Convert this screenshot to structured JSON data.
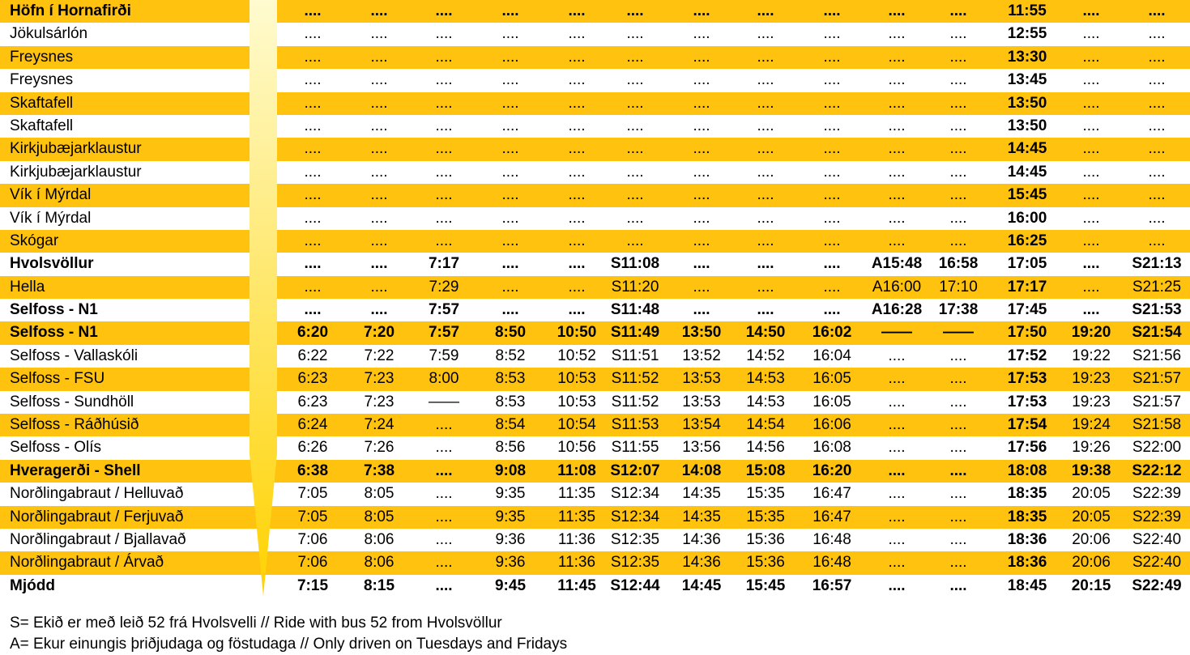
{
  "colors": {
    "highlight": "#FFC20E",
    "arrow_light": "#FFFBD0",
    "arrow_dark": "#FFD200"
  },
  "timetable": {
    "rows": [
      {
        "stop": "Höfn í Hornafirði",
        "shade": true,
        "bold": true,
        "times": [
          "....",
          "....",
          "....",
          "....",
          "....",
          "....",
          "....",
          "....",
          "....",
          "....",
          "....",
          "11:55",
          "....",
          "...."
        ]
      },
      {
        "stop": "Jökulsárlón",
        "shade": false,
        "bold": false,
        "times": [
          "....",
          "....",
          "....",
          "....",
          "....",
          "....",
          "....",
          "....",
          "....",
          "....",
          "....",
          "12:55",
          "....",
          "...."
        ]
      },
      {
        "stop": "Freysnes",
        "shade": true,
        "bold": false,
        "times": [
          "....",
          "....",
          "....",
          "....",
          "....",
          "....",
          "....",
          "....",
          "....",
          "....",
          "....",
          "13:30",
          "....",
          "...."
        ]
      },
      {
        "stop": "Freysnes",
        "shade": false,
        "bold": false,
        "times": [
          "....",
          "....",
          "....",
          "....",
          "....",
          "....",
          "....",
          "....",
          "....",
          "....",
          "....",
          "13:45",
          "....",
          "...."
        ]
      },
      {
        "stop": "Skaftafell",
        "shade": true,
        "bold": false,
        "times": [
          "....",
          "....",
          "....",
          "....",
          "....",
          "....",
          "....",
          "....",
          "....",
          "....",
          "....",
          "13:50",
          "....",
          "...."
        ]
      },
      {
        "stop": "Skaftafell",
        "shade": false,
        "bold": false,
        "times": [
          "....",
          "....",
          "....",
          "....",
          "....",
          "....",
          "....",
          "....",
          "....",
          "....",
          "....",
          "13:50",
          "....",
          "...."
        ]
      },
      {
        "stop": "Kirkjubæjarklaustur",
        "shade": true,
        "bold": false,
        "times": [
          "....",
          "....",
          "....",
          "....",
          "....",
          "....",
          "....",
          "....",
          "....",
          "....",
          "....",
          "14:45",
          "....",
          "...."
        ]
      },
      {
        "stop": "Kirkjubæjarklaustur",
        "shade": false,
        "bold": false,
        "times": [
          "....",
          "....",
          "....",
          "....",
          "....",
          "....",
          "....",
          "....",
          "....",
          "....",
          "....",
          "14:45",
          "....",
          "...."
        ]
      },
      {
        "stop": "Vík í Mýrdal",
        "shade": true,
        "bold": false,
        "times": [
          "....",
          "....",
          "....",
          "....",
          "....",
          "....",
          "....",
          "....",
          "....",
          "....",
          "....",
          "15:45",
          "....",
          "...."
        ]
      },
      {
        "stop": "Vík í Mýrdal",
        "shade": false,
        "bold": false,
        "times": [
          "....",
          "....",
          "....",
          "....",
          "....",
          "....",
          "....",
          "....",
          "....",
          "....",
          "....",
          "16:00",
          "....",
          "...."
        ]
      },
      {
        "stop": "Skógar",
        "shade": true,
        "bold": false,
        "times": [
          "....",
          "....",
          "....",
          "....",
          "....",
          "....",
          "....",
          "....",
          "....",
          "....",
          "....",
          "16:25",
          "....",
          "...."
        ]
      },
      {
        "stop": "Hvolsvöllur",
        "shade": false,
        "bold": true,
        "times": [
          "....",
          "....",
          "7:17",
          "....",
          "....",
          "S11:08",
          "....",
          "....",
          "....",
          "A15:48",
          "16:58",
          "17:05",
          "....",
          "S21:13"
        ]
      },
      {
        "stop": "Hella",
        "shade": true,
        "bold": false,
        "times": [
          "....",
          "....",
          "7:29",
          "....",
          "....",
          "S11:20",
          "....",
          "....",
          "....",
          "A16:00",
          "17:10",
          "17:17",
          "....",
          "S21:25"
        ]
      },
      {
        "stop": "Selfoss - N1",
        "shade": false,
        "bold": true,
        "times": [
          "....",
          "....",
          "7:57",
          "....",
          "....",
          "S11:48",
          "....",
          "....",
          "....",
          "A16:28",
          "17:38",
          "17:45",
          "....",
          "S21:53"
        ]
      },
      {
        "stop": "Selfoss - N1",
        "shade": true,
        "bold": true,
        "times": [
          "6:20",
          "7:20",
          "7:57",
          "8:50",
          "10:50",
          "S11:49",
          "13:50",
          "14:50",
          "16:02",
          "——",
          "——",
          "17:50",
          "19:20",
          "S21:54"
        ]
      },
      {
        "stop": "Selfoss - Vallaskóli",
        "shade": false,
        "bold": false,
        "times": [
          "6:22",
          "7:22",
          "7:59",
          "8:52",
          "10:52",
          "S11:51",
          "13:52",
          "14:52",
          "16:04",
          "....",
          "....",
          "17:52",
          "19:22",
          "S21:56"
        ]
      },
      {
        "stop": "Selfoss - FSU",
        "shade": true,
        "bold": false,
        "times": [
          "6:23",
          "7:23",
          "8:00",
          "8:53",
          "10:53",
          "S11:52",
          "13:53",
          "14:53",
          "16:05",
          "....",
          "....",
          "17:53",
          "19:23",
          "S21:57"
        ]
      },
      {
        "stop": "Selfoss - Sundhöll",
        "shade": false,
        "bold": false,
        "times": [
          "6:23",
          "7:23",
          "——",
          "8:53",
          "10:53",
          "S11:52",
          "13:53",
          "14:53",
          "16:05",
          "....",
          "....",
          "17:53",
          "19:23",
          "S21:57"
        ]
      },
      {
        "stop": "Selfoss - Ráðhúsið",
        "shade": true,
        "bold": false,
        "times": [
          "6:24",
          "7:24",
          "....",
          "8:54",
          "10:54",
          "S11:53",
          "13:54",
          "14:54",
          "16:06",
          "....",
          "....",
          "17:54",
          "19:24",
          "S21:58"
        ]
      },
      {
        "stop": "Selfoss - Olís",
        "shade": false,
        "bold": false,
        "times": [
          "6:26",
          "7:26",
          "....",
          "8:56",
          "10:56",
          "S11:55",
          "13:56",
          "14:56",
          "16:08",
          "....",
          "....",
          "17:56",
          "19:26",
          "S22:00"
        ]
      },
      {
        "stop": "Hveragerði - Shell",
        "shade": true,
        "bold": true,
        "times": [
          "6:38",
          "7:38",
          "....",
          "9:08",
          "11:08",
          "S12:07",
          "14:08",
          "15:08",
          "16:20",
          "....",
          "....",
          "18:08",
          "19:38",
          "S22:12"
        ]
      },
      {
        "stop": "Norðlingabraut / Helluvað",
        "shade": false,
        "bold": false,
        "times": [
          "7:05",
          "8:05",
          "....",
          "9:35",
          "11:35",
          "S12:34",
          "14:35",
          "15:35",
          "16:47",
          "....",
          "....",
          "18:35",
          "20:05",
          "S22:39"
        ]
      },
      {
        "stop": "Norðlingabraut / Ferjuvað",
        "shade": true,
        "bold": false,
        "times": [
          "7:05",
          "8:05",
          "....",
          "9:35",
          "11:35",
          "S12:34",
          "14:35",
          "15:35",
          "16:47",
          "....",
          "....",
          "18:35",
          "20:05",
          "S22:39"
        ]
      },
      {
        "stop": "Norðlingabraut / Bjallavað",
        "shade": false,
        "bold": false,
        "times": [
          "7:06",
          "8:06",
          "....",
          "9:36",
          "11:36",
          "S12:35",
          "14:36",
          "15:36",
          "16:48",
          "....",
          "....",
          "18:36",
          "20:06",
          "S22:40"
        ]
      },
      {
        "stop": "Norðlingabraut / Árvað",
        "shade": true,
        "bold": false,
        "times": [
          "7:06",
          "8:06",
          "....",
          "9:36",
          "11:36",
          "S12:35",
          "14:36",
          "15:36",
          "16:48",
          "....",
          "....",
          "18:36",
          "20:06",
          "S22:40"
        ]
      },
      {
        "stop": "Mjódd",
        "shade": false,
        "bold": true,
        "times": [
          "7:15",
          "8:15",
          "....",
          "9:45",
          "11:45",
          "S12:44",
          "14:45",
          "15:45",
          "16:57",
          "....",
          "....",
          "18:45",
          "20:15",
          "S22:49"
        ]
      }
    ]
  },
  "notes": {
    "line1": "S= Ekið er með leið 52 frá Hvolsvelli // Ride with bus 52 from Hvolsvöllur",
    "line2": "A= Ekur einungis þriðjudaga og föstudaga // Only driven on Tuesdays and Fridays"
  }
}
